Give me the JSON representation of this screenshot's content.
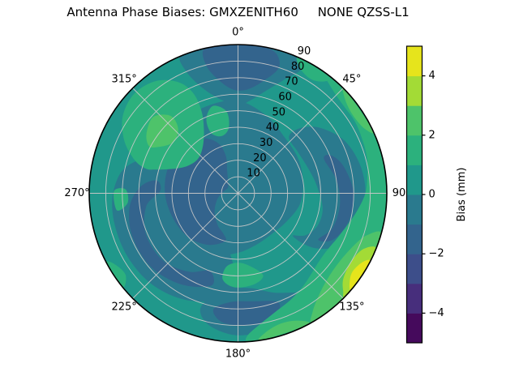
{
  "title": "Antenna Phase Biases: GMXZENITH60     NONE QZSS-L1",
  "polar_axes": {
    "theta_labels": [
      {
        "angle": 0,
        "label": "0°"
      },
      {
        "angle": 45,
        "label": "45°"
      },
      {
        "angle": 90,
        "label": "90"
      },
      {
        "angle": 135,
        "label": "135°"
      },
      {
        "angle": 180,
        "label": "180°"
      },
      {
        "angle": 225,
        "label": "225°"
      },
      {
        "angle": 270,
        "label": "270°"
      },
      {
        "angle": 315,
        "label": "315°"
      }
    ],
    "r_ticks": [
      10,
      20,
      30,
      40,
      50,
      60,
      70,
      80,
      90
    ],
    "r_max": 90,
    "r_label_angle_deg": 22.5,
    "grid_color": "#c9c9c9"
  },
  "colorbar": {
    "label": "Bias (mm)",
    "vmin": -5,
    "vmax": 5,
    "ticks": [
      {
        "value": -4,
        "label": "−4"
      },
      {
        "value": -2,
        "label": "−2"
      },
      {
        "value": 0,
        "label": "0"
      },
      {
        "value": 2,
        "label": "2"
      },
      {
        "value": 4,
        "label": "4"
      }
    ],
    "band_colors": [
      "#450a5c",
      "#472e7c",
      "#3d4e8a",
      "#33648d",
      "#2a7a8e",
      "#20988b",
      "#2cb17d",
      "#4ec36a",
      "#a3db36",
      "#e6e41c"
    ]
  },
  "chart_data": {
    "type": "polar_contourf",
    "title": "Antenna Phase Biases: GMXZENITH60     NONE QZSS-L1",
    "colormap": "viridis",
    "value_label": "Bias (mm)",
    "levels": [
      -5,
      -4,
      -3,
      -2,
      -1,
      0,
      1,
      2,
      3,
      4,
      5
    ],
    "theta_axis": {
      "zero_location": "N",
      "direction": "clockwise",
      "tick_labels": [
        "0°",
        "45°",
        "90",
        "135°",
        "180°",
        "225°",
        "270°",
        "315°"
      ]
    },
    "r_axis": {
      "ticks": [
        10,
        20,
        30,
        40,
        50,
        60,
        70,
        80,
        90
      ],
      "max": 90,
      "label_position_deg": 22.5
    },
    "base_band": 5,
    "regions": [
      {
        "band": 4,
        "range_mm": [
          -1,
          0
        ],
        "points": [
          [
            337,
            90
          ],
          [
            345,
            90
          ],
          [
            355,
            90
          ],
          [
            5,
            90
          ],
          [
            15,
            90
          ],
          [
            25,
            90
          ],
          [
            27,
            84
          ],
          [
            22,
            74
          ],
          [
            15,
            64
          ],
          [
            8,
            57
          ],
          [
            0,
            53
          ],
          [
            352,
            56
          ],
          [
            345,
            62
          ],
          [
            340,
            70
          ],
          [
            337,
            80
          ]
        ]
      },
      {
        "band": 4,
        "range_mm": [
          -1,
          0
        ],
        "points": [
          [
            0,
            56
          ],
          [
            20,
            50
          ],
          [
            40,
            44
          ],
          [
            60,
            42
          ],
          [
            80,
            40
          ],
          [
            100,
            38
          ],
          [
            120,
            34
          ],
          [
            140,
            32
          ],
          [
            160,
            33
          ],
          [
            180,
            36
          ],
          [
            200,
            40
          ],
          [
            220,
            44
          ],
          [
            240,
            47
          ],
          [
            260,
            49
          ],
          [
            280,
            51
          ],
          [
            300,
            53
          ],
          [
            320,
            55
          ],
          [
            340,
            56
          ]
        ]
      },
      {
        "band": 4,
        "range_mm": [
          -1,
          0
        ],
        "points": [
          [
            180,
            62
          ],
          [
            195,
            68
          ],
          [
            210,
            73
          ],
          [
            225,
            76
          ],
          [
            240,
            77
          ],
          [
            255,
            77
          ],
          [
            268,
            76
          ],
          [
            280,
            72
          ],
          [
            288,
            64
          ],
          [
            292,
            55
          ],
          [
            290,
            44
          ],
          [
            283,
            34
          ],
          [
            272,
            26
          ],
          [
            258,
            20
          ],
          [
            242,
            17
          ],
          [
            226,
            17
          ],
          [
            211,
            20
          ],
          [
            198,
            26
          ],
          [
            188,
            36
          ],
          [
            182,
            48
          ]
        ]
      },
      {
        "band": 4,
        "range_mm": [
          -1,
          0
        ],
        "points": [
          [
            148,
            72
          ],
          [
            160,
            64
          ],
          [
            172,
            58
          ],
          [
            184,
            58
          ],
          [
            194,
            64
          ],
          [
            198,
            74
          ],
          [
            192,
            82
          ],
          [
            180,
            86
          ],
          [
            166,
            84
          ],
          [
            154,
            80
          ]
        ]
      },
      {
        "band": 4,
        "range_mm": [
          -1,
          0
        ],
        "points": [
          [
            42,
            46
          ],
          [
            55,
            44
          ],
          [
            70,
            45
          ],
          [
            85,
            48
          ],
          [
            100,
            52
          ],
          [
            112,
            52
          ],
          [
            122,
            48
          ],
          [
            128,
            42
          ],
          [
            126,
            56
          ],
          [
            118,
            68
          ],
          [
            106,
            74
          ],
          [
            92,
            77
          ],
          [
            78,
            76
          ],
          [
            64,
            72
          ],
          [
            52,
            64
          ],
          [
            44,
            55
          ]
        ]
      },
      {
        "band": 3,
        "range_mm": [
          -2,
          -1
        ],
        "points": [
          [
            347,
            90
          ],
          [
            357,
            90
          ],
          [
            8,
            90
          ],
          [
            15,
            88
          ],
          [
            18,
            80
          ],
          [
            13,
            70
          ],
          [
            5,
            63
          ],
          [
            357,
            63
          ],
          [
            350,
            70
          ],
          [
            346,
            80
          ]
        ]
      },
      {
        "band": 3,
        "range_mm": [
          -2,
          -1
        ],
        "points": [
          [
            195,
            30
          ],
          [
            210,
            36
          ],
          [
            228,
            40
          ],
          [
            248,
            42
          ],
          [
            268,
            44
          ],
          [
            288,
            45
          ],
          [
            308,
            44
          ],
          [
            326,
            40
          ],
          [
            338,
            33
          ],
          [
            342,
            24
          ],
          [
            334,
            15
          ],
          [
            318,
            9
          ],
          [
            298,
            7
          ],
          [
            276,
            9
          ],
          [
            254,
            13
          ],
          [
            232,
            18
          ],
          [
            212,
            23
          ],
          [
            200,
            26
          ]
        ]
      },
      {
        "band": 3,
        "range_mm": [
          -2,
          -1
        ],
        "points": [
          [
            196,
            58
          ],
          [
            212,
            65
          ],
          [
            230,
            69
          ],
          [
            248,
            69
          ],
          [
            263,
            66
          ],
          [
            274,
            59
          ],
          [
            279,
            50
          ],
          [
            272,
            47
          ],
          [
            262,
            56
          ],
          [
            246,
            61
          ],
          [
            228,
            61
          ],
          [
            212,
            56
          ],
          [
            200,
            50
          ]
        ]
      },
      {
        "band": 3,
        "range_mm": [
          -2,
          -1
        ],
        "points": [
          [
            68,
            56
          ],
          [
            82,
            60
          ],
          [
            96,
            62
          ],
          [
            110,
            61
          ],
          [
            120,
            56
          ],
          [
            116,
            64
          ],
          [
            104,
            69
          ],
          [
            90,
            70
          ],
          [
            76,
            66
          ],
          [
            68,
            61
          ]
        ]
      },
      {
        "band": 3,
        "range_mm": [
          -2,
          -1
        ],
        "points": [
          [
            160,
            70
          ],
          [
            172,
            66
          ],
          [
            184,
            66
          ],
          [
            192,
            72
          ],
          [
            186,
            79
          ],
          [
            172,
            80
          ],
          [
            162,
            76
          ]
        ]
      },
      {
        "band": 6,
        "range_mm": [
          1,
          2
        ],
        "points": [
          [
            286,
            52
          ],
          [
            292,
            40
          ],
          [
            300,
            34
          ],
          [
            312,
            32
          ],
          [
            324,
            36
          ],
          [
            332,
            44
          ],
          [
            336,
            54
          ],
          [
            336,
            66
          ],
          [
            332,
            76
          ],
          [
            324,
            84
          ],
          [
            314,
            87
          ],
          [
            304,
            84
          ],
          [
            295,
            76
          ],
          [
            288,
            66
          ],
          [
            285,
            58
          ]
        ]
      },
      {
        "band": 6,
        "range_mm": [
          1,
          2
        ],
        "points": [
          [
            336,
            40
          ],
          [
            344,
            36
          ],
          [
            352,
            40
          ],
          [
            352,
            50
          ],
          [
            344,
            55
          ],
          [
            337,
            49
          ]
        ]
      },
      {
        "band": 6,
        "range_mm": [
          1,
          2
        ],
        "points": [
          [
            35,
            90
          ],
          [
            42,
            85
          ],
          [
            50,
            83
          ],
          [
            58,
            83
          ],
          [
            66,
            82
          ],
          [
            74,
            81
          ],
          [
            82,
            79
          ],
          [
            90,
            77
          ],
          [
            98,
            73
          ],
          [
            106,
            69
          ],
          [
            114,
            66
          ],
          [
            122,
            64
          ],
          [
            130,
            64
          ],
          [
            138,
            66
          ],
          [
            146,
            69
          ],
          [
            154,
            72
          ],
          [
            162,
            75
          ],
          [
            170,
            80
          ],
          [
            176,
            86
          ],
          [
            176,
            90
          ],
          [
            166,
            90
          ],
          [
            150,
            90
          ],
          [
            130,
            90
          ],
          [
            110,
            90
          ],
          [
            90,
            90
          ],
          [
            70,
            90
          ],
          [
            50,
            90
          ]
        ]
      },
      {
        "band": 6,
        "range_mm": [
          1,
          2
        ],
        "points": [
          [
            163,
            52
          ],
          [
            170,
            45
          ],
          [
            180,
            42
          ],
          [
            189,
            45
          ],
          [
            190,
            53
          ],
          [
            182,
            57
          ],
          [
            170,
            56
          ]
        ]
      },
      {
        "band": 6,
        "range_mm": [
          1,
          2
        ],
        "points": [
          [
            24,
            90
          ],
          [
            27,
            84
          ],
          [
            33,
            82
          ],
          [
            38,
            86
          ],
          [
            38,
            90
          ]
        ]
      },
      {
        "band": 6,
        "range_mm": [
          1,
          2
        ],
        "points": [
          [
            231,
            90
          ],
          [
            234,
            84
          ],
          [
            240,
            86
          ],
          [
            242,
            90
          ]
        ]
      },
      {
        "band": 6,
        "range_mm": [
          1,
          2
        ],
        "points": [
          [
            262,
            74
          ],
          [
            265,
            67
          ],
          [
            272,
            68
          ],
          [
            271,
            75
          ]
        ]
      },
      {
        "band": 7,
        "range_mm": [
          2,
          3
        ],
        "points": [
          [
            46,
            90
          ],
          [
            49,
            86
          ],
          [
            56,
            84
          ],
          [
            63,
            86
          ],
          [
            65,
            90
          ]
        ]
      },
      {
        "band": 7,
        "range_mm": [
          2,
          3
        ],
        "points": [
          [
            106,
            90
          ],
          [
            108,
            82
          ],
          [
            114,
            77
          ],
          [
            124,
            74
          ],
          [
            134,
            75
          ],
          [
            142,
            79
          ],
          [
            148,
            85
          ],
          [
            150,
            90
          ],
          [
            138,
            90
          ],
          [
            122,
            90
          ]
        ]
      },
      {
        "band": 7,
        "range_mm": [
          2,
          3
        ],
        "points": [
          [
            152,
            90
          ],
          [
            155,
            85
          ],
          [
            162,
            83
          ],
          [
            169,
            86
          ],
          [
            171,
            90
          ]
        ]
      },
      {
        "band": 7,
        "range_mm": [
          2,
          3
        ],
        "points": [
          [
            300,
            56
          ],
          [
            308,
            50
          ],
          [
            317,
            53
          ],
          [
            319,
            62
          ],
          [
            312,
            69
          ],
          [
            303,
            66
          ],
          [
            298,
            61
          ]
        ]
      },
      {
        "band": 8,
        "range_mm": [
          3,
          4
        ],
        "points": [
          [
            112,
            90
          ],
          [
            114,
            83
          ],
          [
            121,
            80
          ],
          [
            129,
            82
          ],
          [
            133,
            87
          ],
          [
            134,
            90
          ],
          [
            124,
            90
          ]
        ]
      },
      {
        "band": 9,
        "range_mm": [
          4,
          5
        ],
        "points": [
          [
            117,
            90
          ],
          [
            119,
            86
          ],
          [
            125,
            84
          ],
          [
            130,
            88
          ],
          [
            130,
            90
          ],
          [
            123,
            90
          ]
        ]
      }
    ]
  }
}
